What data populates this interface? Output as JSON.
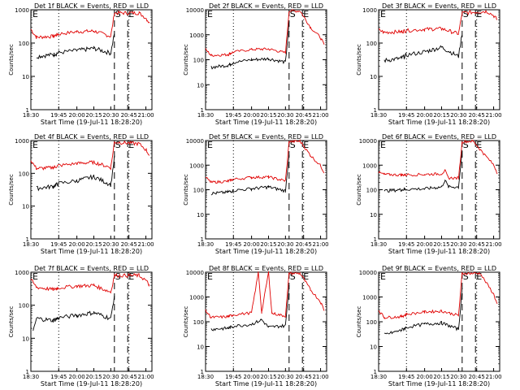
{
  "chart_data": {
    "type": "line",
    "layout": "grid-3x3",
    "y_log": true,
    "ylabel": "Counts/sec",
    "xlabel": "Start Time (19-Jul-11 18:28:20)",
    "x_ticks": [
      "18:30",
      "19:45",
      "20:00",
      "20:15",
      "20:30",
      "20:45",
      "21:00"
    ],
    "x_range": [
      "18:30",
      "21:10"
    ],
    "event_markers": [
      {
        "label": "S",
        "time": "20:33"
      },
      {
        "label": "E",
        "time": "20:44"
      }
    ],
    "series_colors": {
      "events": "#000000",
      "lld": "#e00000"
    },
    "panels": [
      {
        "title": "Det 1f BLACK = Events, RED = LLD",
        "ylim": [
          1,
          1000
        ],
        "y_ticks": [
          "1",
          "10",
          "100",
          "1000"
        ],
        "events": [
          [
            18.75,
            40
          ],
          [
            19.5,
            45
          ],
          [
            20.0,
            60
          ],
          [
            20.25,
            70
          ],
          [
            20.5,
            50
          ],
          [
            20.55,
            200
          ]
        ],
        "lld": [
          [
            18.5,
            260
          ],
          [
            18.75,
            150
          ],
          [
            19.5,
            160
          ],
          [
            20.0,
            220
          ],
          [
            20.25,
            230
          ],
          [
            20.5,
            160
          ],
          [
            20.55,
            800
          ],
          [
            20.9,
            800
          ],
          [
            21.1,
            400
          ]
        ]
      },
      {
        "title": "Det 2f BLACK = Events, RED = LLD",
        "ylim": [
          1,
          10000
        ],
        "y_ticks": [
          "1",
          "10",
          "100",
          "1000",
          "10000"
        ],
        "events": [
          [
            18.75,
            50
          ],
          [
            19.5,
            60
          ],
          [
            20.0,
            100
          ],
          [
            20.25,
            110
          ],
          [
            20.5,
            80
          ],
          [
            20.55,
            3000
          ]
        ],
        "lld": [
          [
            18.5,
            260
          ],
          [
            18.75,
            150
          ],
          [
            19.5,
            160
          ],
          [
            20.0,
            260
          ],
          [
            20.25,
            270
          ],
          [
            20.5,
            190
          ],
          [
            20.55,
            9000
          ],
          [
            20.7,
            9000
          ],
          [
            20.85,
            2000
          ],
          [
            21.1,
            400
          ]
        ]
      },
      {
        "title": "Det 3f BLACK = Events, RED = LLD",
        "ylim": [
          1,
          1000
        ],
        "y_ticks": [
          "1",
          "10",
          "100",
          "1000"
        ],
        "events": [
          [
            18.75,
            30
          ],
          [
            19.5,
            35
          ],
          [
            20.0,
            55
          ],
          [
            20.25,
            75
          ],
          [
            20.5,
            40
          ],
          [
            20.55,
            200
          ]
        ],
        "lld": [
          [
            18.5,
            250
          ],
          [
            18.75,
            210
          ],
          [
            19.5,
            220
          ],
          [
            20.0,
            260
          ],
          [
            20.25,
            270
          ],
          [
            20.5,
            190
          ],
          [
            20.55,
            800
          ],
          [
            20.9,
            900
          ],
          [
            21.1,
            500
          ]
        ]
      },
      {
        "title": "Det 4f BLACK = Events, RED = LLD",
        "ylim": [
          1,
          1000
        ],
        "y_ticks": [
          "1",
          "10",
          "100",
          "1000"
        ],
        "events": [
          [
            18.75,
            35
          ],
          [
            19.5,
            40
          ],
          [
            20.0,
            60
          ],
          [
            20.25,
            80
          ],
          [
            20.5,
            45
          ],
          [
            20.55,
            300
          ]
        ],
        "lld": [
          [
            18.5,
            250
          ],
          [
            18.75,
            140
          ],
          [
            19.5,
            150
          ],
          [
            20.0,
            200
          ],
          [
            20.25,
            220
          ],
          [
            20.5,
            150
          ],
          [
            20.55,
            900
          ],
          [
            20.9,
            800
          ],
          [
            21.1,
            350
          ]
        ]
      },
      {
        "title": "Det 5f BLACK = Events, RED = LLD",
        "ylim": [
          1,
          10000
        ],
        "y_ticks": [
          "1",
          "10",
          "100",
          "1000",
          "10000"
        ],
        "events": [
          [
            18.75,
            70
          ],
          [
            19.5,
            80
          ],
          [
            20.0,
            110
          ],
          [
            20.25,
            130
          ],
          [
            20.5,
            90
          ],
          [
            20.55,
            3000
          ]
        ],
        "lld": [
          [
            18.5,
            320
          ],
          [
            18.75,
            200
          ],
          [
            19.5,
            220
          ],
          [
            20.0,
            320
          ],
          [
            20.25,
            330
          ],
          [
            20.5,
            230
          ],
          [
            20.55,
            9000
          ],
          [
            20.7,
            9500
          ],
          [
            20.85,
            2500
          ],
          [
            21.1,
            500
          ]
        ]
      },
      {
        "title": "Det 6f BLACK = Events, RED = LLD",
        "ylim": [
          1,
          10000
        ],
        "y_ticks": [
          "1",
          "10",
          "100",
          "1000",
          "10000"
        ],
        "events": [
          [
            18.75,
            90
          ],
          [
            19.5,
            100
          ],
          [
            20.0,
            110
          ],
          [
            20.25,
            130
          ],
          [
            20.3,
            250
          ],
          [
            20.35,
            130
          ],
          [
            20.5,
            130
          ],
          [
            20.55,
            4000
          ]
        ],
        "lld": [
          [
            18.5,
            500
          ],
          [
            18.75,
            420
          ],
          [
            19.5,
            400
          ],
          [
            20.0,
            420
          ],
          [
            20.25,
            450
          ],
          [
            20.3,
            600
          ],
          [
            20.35,
            300
          ],
          [
            20.5,
            300
          ],
          [
            20.55,
            9000
          ],
          [
            20.7,
            9500
          ],
          [
            20.85,
            3000
          ],
          [
            21.1,
            500
          ]
        ]
      },
      {
        "title": "Det 7f BLACK = Events, RED = LLD",
        "ylim": [
          1,
          1000
        ],
        "y_ticks": [
          "1",
          "10",
          "100",
          "1000"
        ],
        "events": [
          [
            18.6,
            15
          ],
          [
            18.75,
            40
          ],
          [
            19.5,
            35
          ],
          [
            20.0,
            50
          ],
          [
            20.25,
            60
          ],
          [
            20.5,
            40
          ],
          [
            20.55,
            200
          ]
        ],
        "lld": [
          [
            18.5,
            600
          ],
          [
            18.75,
            350
          ],
          [
            19.5,
            300
          ],
          [
            20.0,
            380
          ],
          [
            20.25,
            400
          ],
          [
            20.5,
            250
          ],
          [
            20.55,
            800
          ],
          [
            20.9,
            800
          ],
          [
            21.1,
            400
          ]
        ]
      },
      {
        "title": "Det 8f BLACK = Events, RED = LLD",
        "ylim": [
          1,
          10000
        ],
        "y_ticks": [
          "1",
          "10",
          "100",
          "1000",
          "10000"
        ],
        "events": [
          [
            18.75,
            50
          ],
          [
            19.5,
            55
          ],
          [
            20.0,
            80
          ],
          [
            20.15,
            120
          ],
          [
            20.25,
            60
          ],
          [
            20.5,
            70
          ],
          [
            20.55,
            3000
          ]
        ],
        "lld": [
          [
            18.5,
            280
          ],
          [
            18.75,
            150
          ],
          [
            19.5,
            160
          ],
          [
            20.0,
            230
          ],
          [
            20.1,
            10000
          ],
          [
            20.15,
            240
          ],
          [
            20.25,
            10000
          ],
          [
            20.3,
            220
          ],
          [
            20.5,
            170
          ],
          [
            20.55,
            9000
          ],
          [
            20.7,
            9000
          ],
          [
            20.85,
            2000
          ],
          [
            21.1,
            300
          ]
        ]
      },
      {
        "title": "Det 9f BLACK = Events, RED = LLD",
        "ylim": [
          1,
          10000
        ],
        "y_ticks": [
          "1",
          "10",
          "100",
          "1000",
          "10000"
        ],
        "events": [
          [
            18.75,
            30
          ],
          [
            19.5,
            45
          ],
          [
            20.0,
            80
          ],
          [
            20.25,
            90
          ],
          [
            20.5,
            50
          ],
          [
            20.55,
            2000
          ]
        ],
        "lld": [
          [
            18.5,
            300
          ],
          [
            18.75,
            150
          ],
          [
            19.5,
            160
          ],
          [
            20.0,
            250
          ],
          [
            20.25,
            270
          ],
          [
            20.5,
            180
          ],
          [
            20.55,
            9000
          ],
          [
            20.8,
            9000
          ],
          [
            21.1,
            500
          ]
        ]
      }
    ]
  }
}
